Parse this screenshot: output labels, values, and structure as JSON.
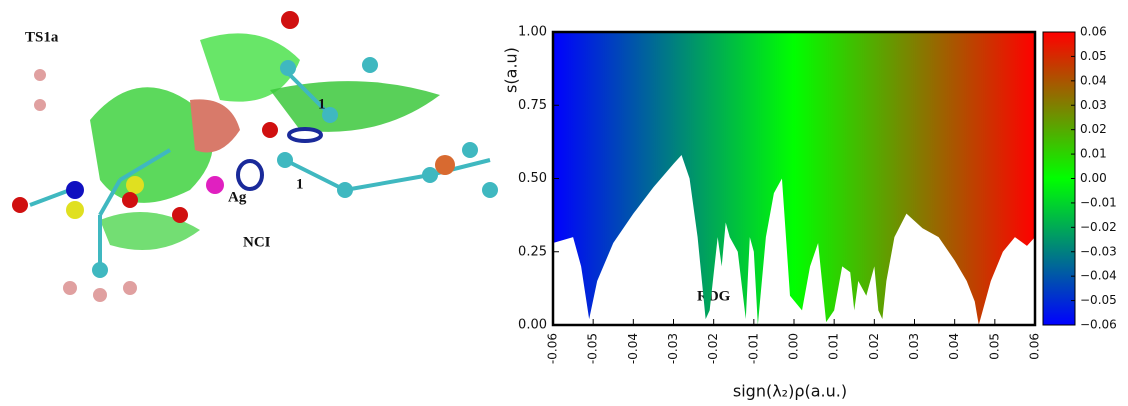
{
  "figure_labels": {
    "structure": "TS1a",
    "bond_1a": "1",
    "bond_1b": "1",
    "metal": "Ag",
    "method": "NCI"
  },
  "chart_data": {
    "type": "area",
    "annotation": "RDG",
    "xlabel": "sign(λ₂)ρ(a.u.)",
    "ylabel": "s(a.u)",
    "x": [
      -0.06,
      -0.055,
      -0.053,
      -0.051,
      -0.049,
      -0.045,
      -0.04,
      -0.035,
      -0.03,
      -0.028,
      -0.026,
      -0.024,
      -0.022,
      -0.021,
      -0.019,
      -0.018,
      -0.017,
      -0.016,
      -0.014,
      -0.012,
      -0.011,
      -0.01,
      -0.009,
      -0.007,
      -0.005,
      -0.003,
      -0.002,
      -0.001,
      0.002,
      0.004,
      0.006,
      0.008,
      0.01,
      0.012,
      0.014,
      0.015,
      0.016,
      0.018,
      0.02,
      0.021,
      0.022,
      0.023,
      0.025,
      0.028,
      0.032,
      0.036,
      0.04,
      0.043,
      0.045,
      0.046,
      0.047,
      0.049,
      0.052,
      0.055,
      0.058,
      0.06
    ],
    "values": [
      0.28,
      0.3,
      0.2,
      0.02,
      0.15,
      0.28,
      0.38,
      0.47,
      0.55,
      0.58,
      0.5,
      0.3,
      0.02,
      0.05,
      0.3,
      0.2,
      0.35,
      0.3,
      0.25,
      0.02,
      0.3,
      0.25,
      0.0,
      0.3,
      0.45,
      0.5,
      0.3,
      0.1,
      0.05,
      0.2,
      0.28,
      0.01,
      0.05,
      0.2,
      0.18,
      0.05,
      0.15,
      0.1,
      0.2,
      0.05,
      0.02,
      0.15,
      0.3,
      0.38,
      0.33,
      0.3,
      0.22,
      0.15,
      0.08,
      0.0,
      0.05,
      0.15,
      0.25,
      0.3,
      0.27,
      0.3
    ],
    "xlim": [
      -0.06,
      0.06
    ],
    "xticks": [
      {
        "value": -0.06,
        "label": "-0.06"
      },
      {
        "value": -0.05,
        "label": "-0.05"
      },
      {
        "value": -0.04,
        "label": "-0.04"
      },
      {
        "value": -0.03,
        "label": "-0.03"
      },
      {
        "value": -0.02,
        "label": "-0.02"
      },
      {
        "value": -0.01,
        "label": "-0.01"
      },
      {
        "value": 0,
        "label": "0.00"
      },
      {
        "value": 0.01,
        "label": "0.01"
      },
      {
        "value": 0.02,
        "label": "0.02"
      },
      {
        "value": 0.03,
        "label": "0.03"
      },
      {
        "value": 0.04,
        "label": "0.04"
      },
      {
        "value": 0.05,
        "label": "0.05"
      },
      {
        "value": 0.06,
        "label": "0.06"
      }
    ],
    "ylim": [
      0,
      1
    ],
    "yticks": [
      {
        "value": 0,
        "label": "0.00"
      },
      {
        "value": 0.25,
        "label": "0.25"
      },
      {
        "value": 0.5,
        "label": "0.50"
      },
      {
        "value": 0.75,
        "label": "0.75"
      },
      {
        "value": 1,
        "label": "1.00"
      }
    ],
    "colorbar": {
      "lim": [
        -0.06,
        0.06
      ],
      "colors": [
        "#0000ff",
        "#00ff00",
        "#ff0000"
      ],
      "ticks": [
        {
          "value": 0.06,
          "label": "0.06"
        },
        {
          "value": 0.05,
          "label": "0.05"
        },
        {
          "value": 0.04,
          "label": "0.04"
        },
        {
          "value": 0.03,
          "label": "0.03"
        },
        {
          "value": 0.02,
          "label": "0.02"
        },
        {
          "value": 0.01,
          "label": "0.01"
        },
        {
          "value": 0,
          "label": "0.00"
        },
        {
          "value": -0.01,
          "label": "−0.01"
        },
        {
          "value": -0.02,
          "label": "−0.02"
        },
        {
          "value": -0.03,
          "label": "−0.03"
        },
        {
          "value": -0.04,
          "label": "−0.04"
        },
        {
          "value": -0.05,
          "label": "−0.05"
        },
        {
          "value": -0.06,
          "label": "−0.06"
        }
      ]
    }
  }
}
